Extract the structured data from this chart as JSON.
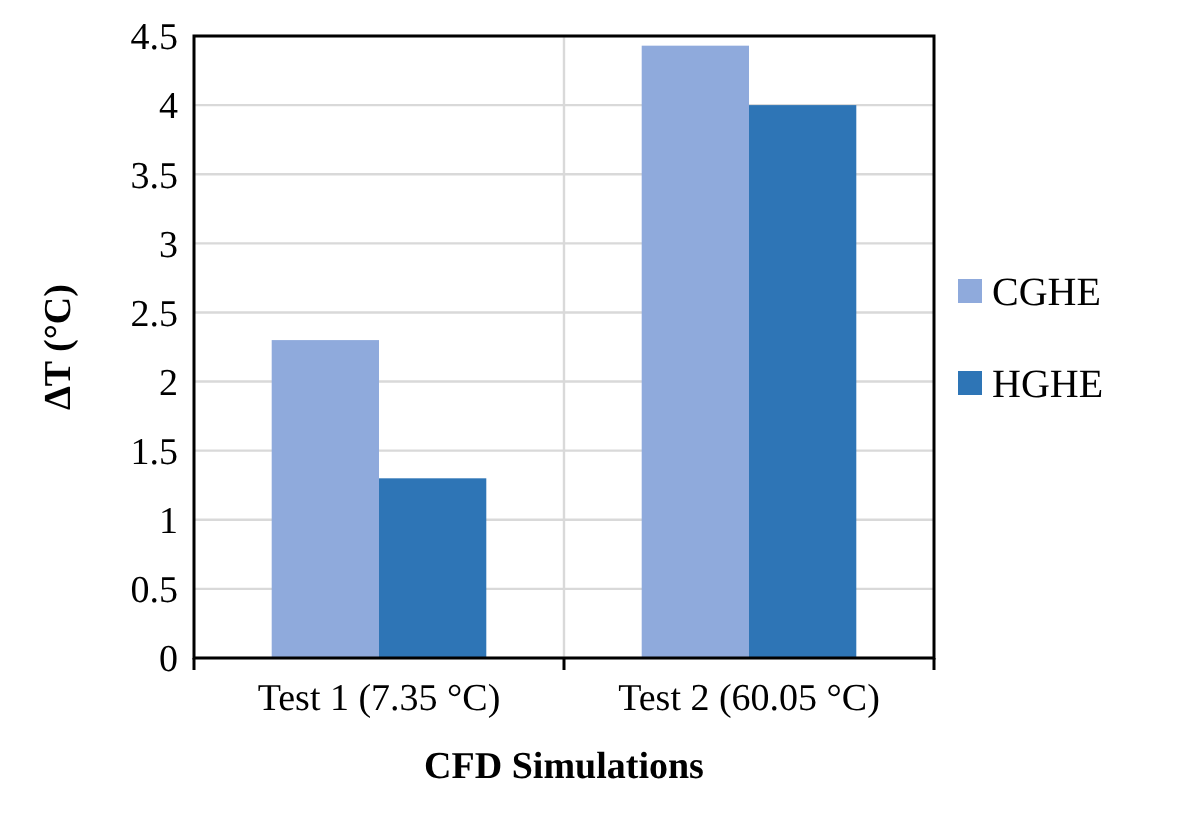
{
  "chart_data": {
    "type": "bar",
    "xlabel": "CFD Simulations",
    "ylabel": "ΔT (°C)",
    "categories": [
      "Test 1 (7.35 °C)",
      "Test 2 (60.05 °C)"
    ],
    "series": [
      {
        "name": "CGHE",
        "color": "#8faadc",
        "values": [
          2.3,
          4.43
        ]
      },
      {
        "name": "HGHE",
        "color": "#2e75b6",
        "values": [
          1.3,
          4.0
        ]
      }
    ],
    "ylim": [
      0,
      4.5
    ],
    "yticks": [
      0,
      0.5,
      1,
      1.5,
      2,
      2.5,
      3,
      3.5,
      4,
      4.5
    ],
    "grid": true,
    "legend": "right"
  }
}
